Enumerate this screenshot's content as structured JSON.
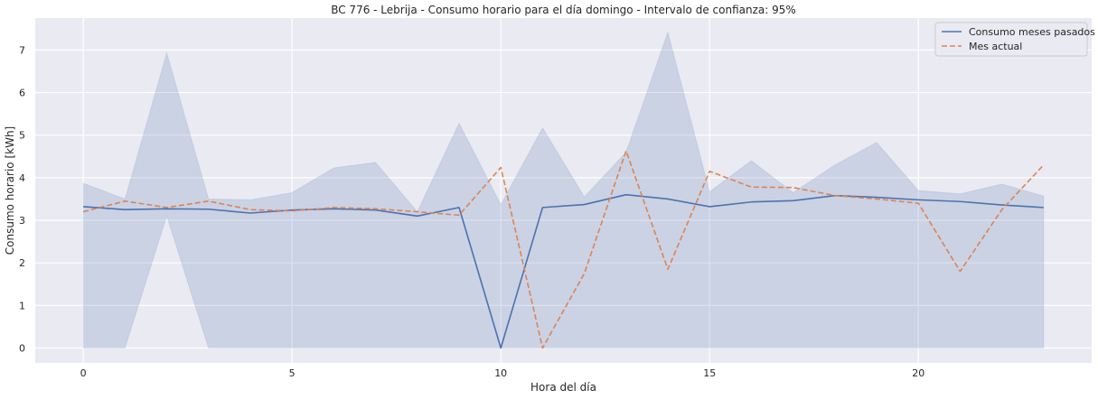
{
  "chart_data": {
    "type": "line",
    "title": "BC 776 - Lebrija - Consumo horario para el día domingo - Intervalo de confianza: 95%",
    "xlabel": "Hora del día",
    "ylabel": "Consumo horario [kWh]",
    "xlim": [
      -1.15,
      24.15
    ],
    "ylim": [
      -0.35,
      7.75
    ],
    "xticks": [
      0,
      5,
      10,
      15,
      20
    ],
    "yticks": [
      0,
      1,
      2,
      3,
      4,
      5,
      6,
      7
    ],
    "grid": true,
    "legend_position": "top-right",
    "x": [
      0,
      1,
      2,
      3,
      4,
      5,
      6,
      7,
      8,
      9,
      10,
      11,
      12,
      13,
      14,
      15,
      16,
      17,
      18,
      19,
      20,
      21,
      22,
      23
    ],
    "series": [
      {
        "name": "Consumo meses pasados",
        "style": "solid",
        "color": "#4c72b0",
        "values": [
          3.32,
          3.25,
          3.27,
          3.26,
          3.17,
          3.24,
          3.27,
          3.24,
          3.1,
          3.3,
          0.0,
          3.3,
          3.37,
          3.6,
          3.5,
          3.32,
          3.43,
          3.46,
          3.58,
          3.54,
          3.48,
          3.44,
          3.36,
          3.3
        ]
      },
      {
        "name": "Mes actual",
        "style": "dashed",
        "color": "#dd8452",
        "values": [
          3.2,
          3.45,
          3.3,
          3.45,
          3.25,
          3.22,
          3.3,
          3.27,
          3.2,
          3.12,
          4.24,
          0.0,
          1.75,
          4.63,
          1.85,
          4.15,
          3.78,
          3.77,
          3.58,
          3.5,
          3.4,
          1.8,
          3.25,
          4.3
        ]
      }
    ],
    "confidence_band": {
      "series": "Consumo meses pasados",
      "color": "#4c72b0",
      "lower": [
        0.0,
        0.0,
        3.1,
        0.0,
        0.0,
        0.0,
        0.0,
        0.0,
        0.0,
        0.0,
        0.0,
        0.0,
        0.0,
        0.0,
        0.0,
        0.0,
        0.0,
        0.0,
        0.0,
        0.0,
        0.0,
        0.0,
        0.0,
        0.0
      ],
      "upper": [
        3.87,
        3.5,
        6.93,
        3.5,
        3.48,
        3.65,
        4.23,
        4.36,
        3.2,
        5.28,
        3.37,
        5.17,
        3.55,
        4.6,
        7.42,
        3.67,
        4.4,
        3.65,
        4.3,
        4.83,
        3.7,
        3.62,
        3.85,
        3.57
      ]
    }
  }
}
